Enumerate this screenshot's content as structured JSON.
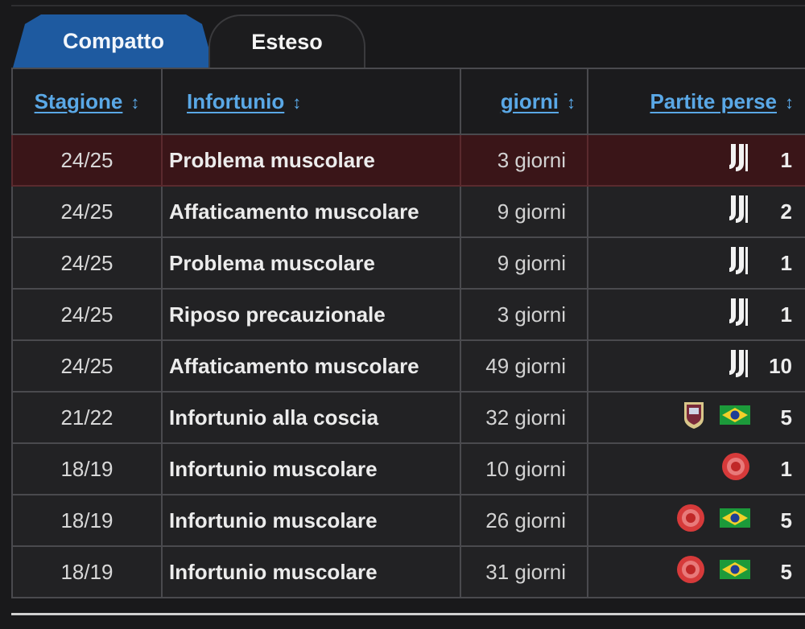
{
  "tabs": [
    {
      "label": "Compatto",
      "active": true,
      "color": "#1e5aa0"
    },
    {
      "label": "Esteso",
      "active": false
    }
  ],
  "table": {
    "headers": {
      "season": "Stagione",
      "injury": "Infortunio",
      "days": "giorni",
      "games": "Partite perse",
      "sort_icon": "↕"
    },
    "rows": [
      {
        "season": "24/25",
        "injury": "Problema muscolare",
        "days": "3 giorni",
        "clubs": [
          "juventus-icon"
        ],
        "games": "1",
        "highlight": true
      },
      {
        "season": "24/25",
        "injury": "Affaticamento muscolare",
        "days": "9 giorni",
        "clubs": [
          "juventus-icon"
        ],
        "games": "2"
      },
      {
        "season": "24/25",
        "injury": "Problema muscolare",
        "days": "9 giorni",
        "clubs": [
          "juventus-icon"
        ],
        "games": "1"
      },
      {
        "season": "24/25",
        "injury": "Riposo precauzionale",
        "days": "3 giorni",
        "clubs": [
          "juventus-icon"
        ],
        "games": "1"
      },
      {
        "season": "24/25",
        "injury": "Affaticamento muscolare",
        "days": "49 giorni",
        "clubs": [
          "juventus-icon"
        ],
        "games": "10"
      },
      {
        "season": "21/22",
        "injury": "Infortunio alla coscia",
        "days": "32 giorni",
        "clubs": [
          "aston-villa-icon",
          "brazil-flag-icon"
        ],
        "games": "5"
      },
      {
        "season": "18/19",
        "injury": "Infortunio muscolare",
        "days": "10 giorni",
        "clubs": [
          "girona-icon"
        ],
        "games": "1"
      },
      {
        "season": "18/19",
        "injury": "Infortunio muscolare",
        "days": "26 giorni",
        "clubs": [
          "girona-icon",
          "brazil-flag-icon"
        ],
        "games": "5"
      },
      {
        "season": "18/19",
        "injury": "Infortunio muscolare",
        "days": "31 giorni",
        "clubs": [
          "girona-icon",
          "brazil-flag-icon"
        ],
        "games": "5"
      }
    ]
  },
  "colors": {
    "link": "#5aa8e6",
    "highlight_row": "#3a1518",
    "background": "#19191b"
  }
}
